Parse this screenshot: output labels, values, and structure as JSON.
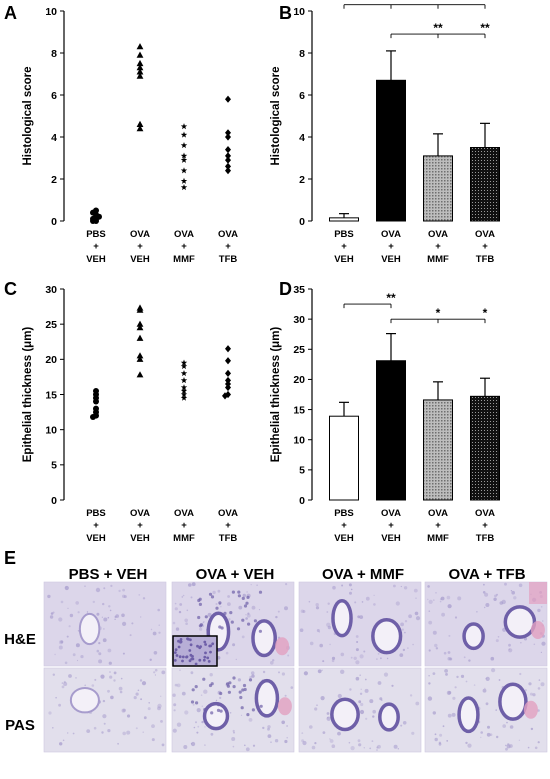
{
  "figure": {
    "panel_labels": [
      "A",
      "B",
      "C",
      "D",
      "E"
    ]
  },
  "groups": [
    {
      "line1": "PBS",
      "line2": "+",
      "line3": "VEH"
    },
    {
      "line1": "OVA",
      "line2": "+",
      "line3": "VEH"
    },
    {
      "line1": "OVA",
      "line2": "+",
      "line3": "MMF"
    },
    {
      "line1": "OVA",
      "line2": "+",
      "line3": "TFB"
    }
  ],
  "chart_data": [
    {
      "panel": "A",
      "type": "scatter",
      "ylabel": "Histological score",
      "ylim": [
        0,
        10
      ],
      "yticks": [
        0,
        2,
        4,
        6,
        8,
        10
      ],
      "categories": [
        "PBS + VEH",
        "OVA + VEH",
        "OVA + MMF",
        "OVA + TFB"
      ],
      "series": [
        {
          "category": "PBS + VEH",
          "marker": "circle",
          "values": [
            0,
            0,
            0.1,
            0.1,
            0.2,
            0.3,
            0.4,
            0.5
          ]
        },
        {
          "category": "OVA + VEH",
          "marker": "triangle",
          "values": [
            8.3,
            7.9,
            7.5,
            7.3,
            7.1,
            6.9,
            4.6,
            4.4
          ]
        },
        {
          "category": "OVA + MMF",
          "marker": "star",
          "values": [
            4.5,
            4.1,
            3.6,
            3.1,
            2.9,
            2.4,
            1.9,
            1.6
          ]
        },
        {
          "category": "OVA + TFB",
          "marker": "diamond",
          "values": [
            5.8,
            4.2,
            4.0,
            3.4,
            3.1,
            2.9,
            2.6,
            2.4
          ]
        }
      ]
    },
    {
      "panel": "B",
      "type": "bar",
      "ylabel": "Histological score",
      "ylim": [
        0,
        10
      ],
      "yticks": [
        0,
        2,
        4,
        6,
        8,
        10
      ],
      "categories": [
        "PBS + VEH",
        "OVA + VEH",
        "OVA + MMF",
        "OVA + TFB"
      ],
      "values": [
        0.15,
        6.7,
        3.1,
        3.5
      ],
      "errors": [
        0.2,
        1.4,
        1.05,
        1.15
      ],
      "fills": [
        "white",
        "black",
        "gray",
        "dots"
      ],
      "significance": [
        {
          "from": 0,
          "to": 3,
          "level": 10.3,
          "marks": [
            {
              "at": 1,
              "text": "**"
            },
            {
              "at": 2,
              "text": "**"
            },
            {
              "at": 3,
              "text": "**"
            }
          ]
        },
        {
          "from": 1,
          "to": 3,
          "level": 8.9,
          "marks": [
            {
              "at": 2,
              "text": "**"
            },
            {
              "at": 3,
              "text": "**"
            }
          ]
        }
      ]
    },
    {
      "panel": "C",
      "type": "scatter",
      "ylabel": "Epithelial thickness (μm)",
      "ylim": [
        0,
        30
      ],
      "yticks": [
        0,
        5,
        10,
        15,
        20,
        25,
        30
      ],
      "categories": [
        "PBS + VEH",
        "OVA + VEH",
        "OVA + MMF",
        "OVA + TFB"
      ],
      "series": [
        {
          "category": "PBS + VEH",
          "marker": "circle",
          "values": [
            15.5,
            15.0,
            14.5,
            14.0,
            13.0,
            12.5,
            12.0,
            11.8
          ]
        },
        {
          "category": "OVA + VEH",
          "marker": "triangle",
          "values": [
            27.3,
            27.0,
            25.0,
            24.5,
            23.0,
            20.5,
            20.0,
            17.8
          ]
        },
        {
          "category": "OVA + MMF",
          "marker": "star",
          "values": [
            19.5,
            19.0,
            18.0,
            17.0,
            16.0,
            15.5,
            15.0,
            14.5
          ]
        },
        {
          "category": "OVA + TFB",
          "marker": "diamond",
          "values": [
            21.5,
            19.8,
            18.0,
            17.0,
            16.5,
            16.0,
            15.0,
            14.8
          ]
        }
      ]
    },
    {
      "panel": "D",
      "type": "bar",
      "ylabel": "Epithelial thickness (μm)",
      "ylim": [
        0,
        35
      ],
      "yticks": [
        0,
        5,
        10,
        15,
        20,
        25,
        30,
        35
      ],
      "categories": [
        "PBS + VEH",
        "OVA + VEH",
        "OVA + MMF",
        "OVA + TFB"
      ],
      "values": [
        13.9,
        23.1,
        16.6,
        17.2
      ],
      "errors": [
        2.3,
        4.5,
        3.0,
        3.0
      ],
      "fills": [
        "white",
        "black",
        "gray",
        "dots"
      ],
      "significance": [
        {
          "from": 0,
          "to": 1,
          "level": 32.5,
          "marks": [
            {
              "at": 1,
              "text": "**"
            }
          ]
        },
        {
          "from": 1,
          "to": 3,
          "level": 30.0,
          "marks": [
            {
              "at": 2,
              "text": "*"
            },
            {
              "at": 3,
              "text": "*"
            }
          ]
        }
      ]
    }
  ],
  "histology": {
    "columns": [
      "PBS + VEH",
      "OVA + VEH",
      "OVA + MMF",
      "OVA + TFB"
    ],
    "rows": [
      "H&E",
      "PAS"
    ],
    "colors": {
      "he_bg": "#dcd6ea",
      "pas_bg": "#e2dfec",
      "tissue": "#a79ccd",
      "dark": "#6e5fa8",
      "pink": "#e2a0c0"
    }
  }
}
